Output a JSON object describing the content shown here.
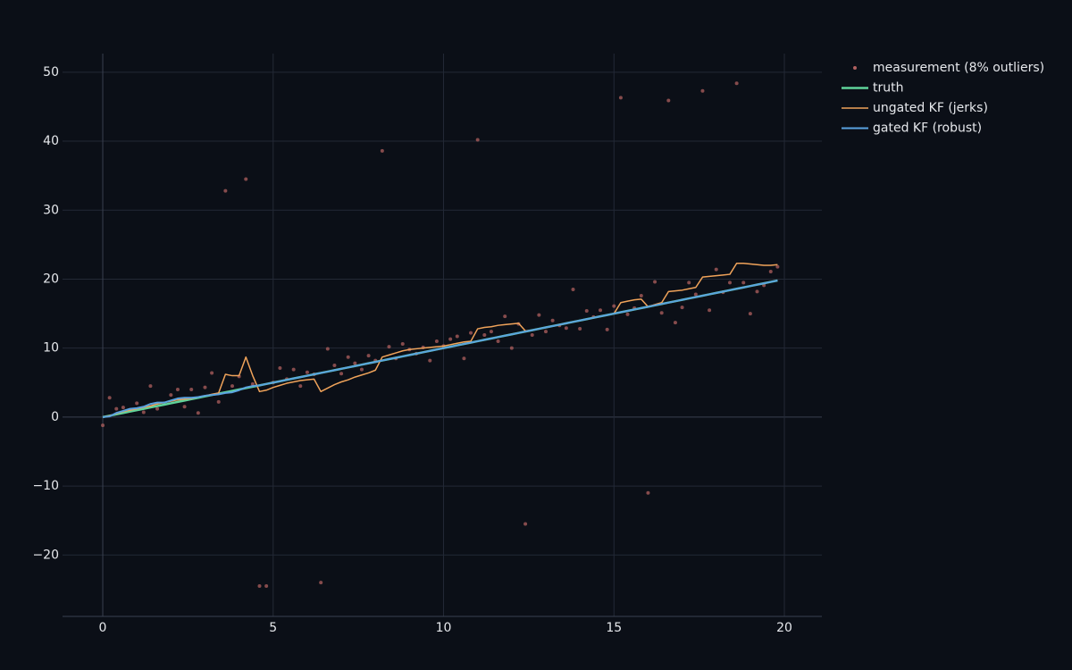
{
  "chart_data": {
    "type": "line",
    "x": [
      0,
      0.2,
      0.4,
      0.6,
      0.8,
      1.0,
      1.2,
      1.4,
      1.6,
      1.8,
      2.0,
      2.2,
      2.4,
      2.6,
      2.8,
      3.0,
      3.2,
      3.4,
      3.6,
      3.8,
      4.0,
      4.2,
      4.4,
      4.6,
      4.8,
      5.0,
      5.2,
      5.4,
      5.6,
      5.8,
      6.0,
      6.2,
      6.4,
      6.6,
      6.8,
      7.0,
      7.2,
      7.4,
      7.6,
      7.8,
      8.0,
      8.2,
      8.4,
      8.6,
      8.8,
      9.0,
      9.2,
      9.4,
      9.6,
      9.8,
      10.0,
      10.2,
      10.4,
      10.6,
      10.8,
      11.0,
      11.2,
      11.4,
      11.6,
      11.8,
      12.0,
      12.2,
      12.4,
      12.6,
      12.8,
      13.0,
      13.2,
      13.4,
      13.6,
      13.8,
      14.0,
      14.2,
      14.4,
      14.6,
      14.8,
      15.0,
      15.2,
      15.4,
      15.6,
      15.8,
      16.0,
      16.2,
      16.4,
      16.6,
      16.8,
      17.0,
      17.2,
      17.4,
      17.6,
      17.8,
      18.0,
      18.2,
      18.4,
      18.6,
      18.8,
      19.0,
      19.2,
      19.4,
      19.6,
      19.8
    ],
    "series": [
      {
        "name": "measurement (8% outliers)",
        "color": "#b0605f",
        "mode": "markers",
        "values": [
          -1.2,
          2.8,
          1.2,
          1.4,
          1.0,
          2.0,
          0.7,
          4.5,
          1.2,
          2.0,
          3.2,
          4.0,
          1.5,
          4.0,
          0.6,
          4.3,
          6.4,
          2.2,
          32.8,
          4.5,
          5.9,
          34.5,
          4.8,
          -24.5,
          -24.5,
          5.0,
          7.1,
          5.5,
          6.9,
          4.5,
          6.5,
          6.2,
          -24.0,
          9.9,
          7.5,
          6.3,
          8.7,
          7.8,
          6.9,
          8.9,
          8.2,
          38.6,
          10.2,
          8.5,
          10.6,
          9.8,
          9.2,
          10.1,
          8.2,
          11.0,
          10.3,
          11.3,
          11.7,
          8.5,
          12.2,
          40.2,
          11.9,
          12.4,
          11.0,
          14.6,
          10.0,
          13.5,
          -15.5,
          11.9,
          14.8,
          12.4,
          14.0,
          13.3,
          12.9,
          18.5,
          12.8,
          15.4,
          14.5,
          15.5,
          12.7,
          16.1,
          46.3,
          14.9,
          15.8,
          17.6,
          -11.0,
          19.6,
          15.1,
          45.9,
          13.7,
          15.9,
          19.5,
          17.8,
          47.3,
          15.5,
          21.4,
          18.1,
          19.5,
          48.4,
          19.5,
          15.0,
          18.2,
          19.1,
          21.1,
          21.8
        ]
      },
      {
        "name": "truth",
        "color": "#5fd39a",
        "mode": "lines",
        "width": 2.5,
        "values": [
          0,
          0.2,
          0.4,
          0.6,
          0.8,
          1.0,
          1.2,
          1.4,
          1.6,
          1.8,
          2.0,
          2.2,
          2.4,
          2.6,
          2.8,
          3.0,
          3.2,
          3.4,
          3.6,
          3.8,
          4.0,
          4.2,
          4.4,
          4.6,
          4.8,
          5.0,
          5.2,
          5.4,
          5.6,
          5.8,
          6.0,
          6.2,
          6.4,
          6.6,
          6.8,
          7.0,
          7.2,
          7.4,
          7.6,
          7.8,
          8.0,
          8.2,
          8.4,
          8.6,
          8.8,
          9.0,
          9.2,
          9.4,
          9.6,
          9.8,
          10.0,
          10.2,
          10.4,
          10.6,
          10.8,
          11.0,
          11.2,
          11.4,
          11.6,
          11.8,
          12.0,
          12.2,
          12.4,
          12.6,
          12.8,
          13.0,
          13.2,
          13.4,
          13.6,
          13.8,
          14.0,
          14.2,
          14.4,
          14.6,
          14.8,
          15.0,
          15.2,
          15.4,
          15.6,
          15.8,
          16.0,
          16.2,
          16.4,
          16.6,
          16.8,
          17.0,
          17.2,
          17.4,
          17.6,
          17.8,
          18.0,
          18.2,
          18.4,
          18.6,
          18.8,
          19.0,
          19.2,
          19.4,
          19.6,
          19.8
        ]
      },
      {
        "name": "ungated KF (jerks)",
        "color": "#f0a35a",
        "mode": "lines",
        "width": 1.5,
        "values": [
          0,
          0.2,
          0.5,
          0.8,
          1.0,
          1.2,
          1.4,
          1.6,
          1.9,
          2.1,
          2.3,
          2.5,
          2.6,
          2.7,
          2.9,
          3.1,
          3.3,
          3.5,
          6.2,
          6.0,
          6.0,
          8.7,
          6.0,
          3.7,
          3.9,
          4.3,
          4.6,
          4.9,
          5.1,
          5.3,
          5.4,
          5.5,
          3.7,
          4.2,
          4.7,
          5.1,
          5.4,
          5.8,
          6.1,
          6.4,
          6.8,
          8.7,
          9.0,
          9.3,
          9.6,
          9.8,
          9.9,
          10.0,
          10.1,
          10.2,
          10.3,
          10.5,
          10.7,
          10.9,
          11.0,
          12.8,
          13.0,
          13.1,
          13.3,
          13.4,
          13.5,
          13.6,
          12.5,
          12.6,
          12.8,
          13.0,
          13.2,
          13.4,
          13.6,
          13.8,
          14.0,
          14.2,
          14.4,
          14.6,
          14.8,
          15.0,
          16.6,
          16.8,
          17.0,
          17.1,
          16.0,
          16.3,
          16.6,
          18.2,
          18.3,
          18.4,
          18.6,
          18.8,
          20.3,
          20.4,
          20.5,
          20.6,
          20.7,
          22.3,
          22.3,
          22.2,
          22.1,
          22.0,
          22.0,
          22.1
        ]
      },
      {
        "name": "gated KF (robust)",
        "color": "#5aa2e0",
        "mode": "lines",
        "width": 2,
        "values": [
          0,
          0.1,
          0.6,
          0.9,
          1.2,
          1.3,
          1.5,
          1.9,
          2.1,
          2.1,
          2.4,
          2.7,
          2.8,
          2.8,
          2.9,
          3.1,
          3.2,
          3.3,
          3.5,
          3.6,
          3.9,
          4.3,
          4.5,
          4.6,
          4.8,
          5.0,
          5.2,
          5.4,
          5.6,
          5.8,
          6.0,
          6.2,
          6.4,
          6.6,
          6.8,
          7.0,
          7.2,
          7.4,
          7.6,
          7.8,
          8.0,
          8.2,
          8.4,
          8.6,
          8.8,
          9.0,
          9.2,
          9.4,
          9.6,
          9.8,
          10.0,
          10.2,
          10.4,
          10.6,
          10.8,
          11.0,
          11.2,
          11.4,
          11.6,
          11.8,
          12.0,
          12.2,
          12.4,
          12.6,
          12.8,
          13.0,
          13.2,
          13.4,
          13.6,
          13.8,
          14.0,
          14.2,
          14.4,
          14.6,
          14.8,
          15.0,
          15.2,
          15.4,
          15.6,
          15.8,
          16.0,
          16.2,
          16.4,
          16.6,
          16.8,
          17.0,
          17.2,
          17.4,
          17.6,
          17.8,
          18.0,
          18.2,
          18.4,
          18.6,
          18.8,
          19.0,
          19.2,
          19.4,
          19.6,
          19.8
        ]
      }
    ],
    "xlim": [
      -1.18,
      21.1
    ],
    "xticks": [
      0,
      5,
      10,
      15,
      20
    ],
    "ylim": [
      -28.9,
      52.7
    ],
    "yticks": [
      {
        "value": -20,
        "label": "−20"
      },
      {
        "value": -10,
        "label": "−10"
      },
      0,
      10,
      20,
      30,
      40,
      50
    ],
    "grid": true,
    "legend": "outside-top-right"
  }
}
